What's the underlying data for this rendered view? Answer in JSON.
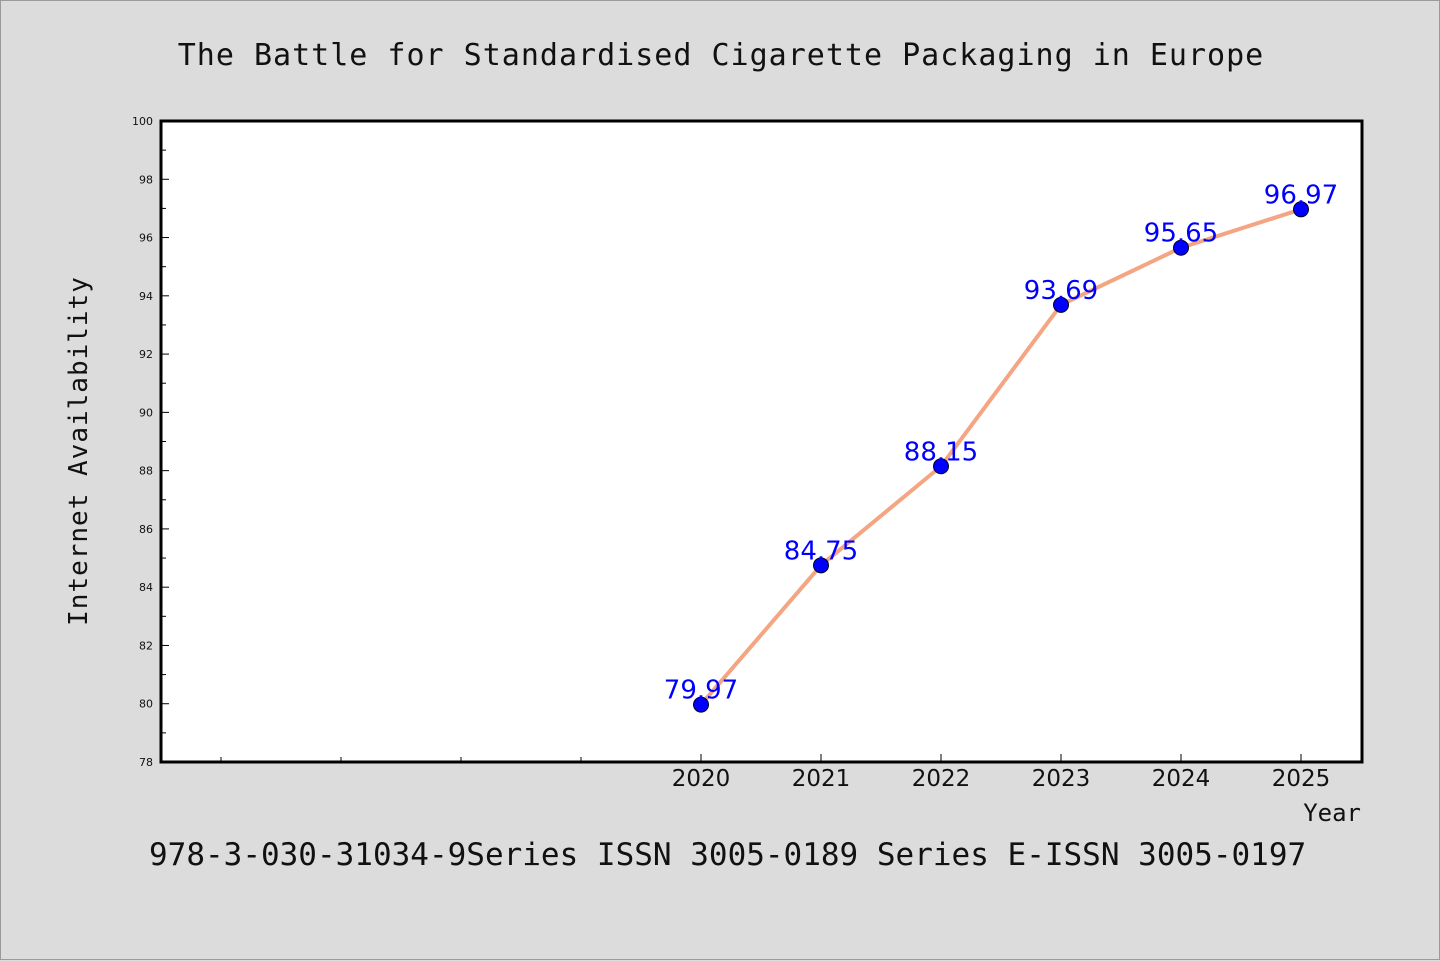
{
  "colors": {
    "background": "#dcdcdc",
    "plot_background": "#ffffff",
    "line": "#f4a582",
    "marker": "#0000ff",
    "data_label": "#0000ff"
  },
  "footer": "978-3-030-31034-9Series ISSN 3005-0189 Series E-ISSN 3005-0197",
  "chart_data": {
    "type": "line",
    "title": "The Battle for Standardised Cigarette Packaging in Europe",
    "xlabel": "Year",
    "ylabel": "Internet Availability",
    "x": [
      "2020",
      "2021",
      "2022",
      "2023",
      "2024",
      "2025"
    ],
    "series": [
      {
        "values": [
          79.97,
          84.75,
          88.15,
          93.69,
          95.65,
          96.97
        ]
      }
    ],
    "data_labels": [
      "79.97",
      "84.75",
      "88.15",
      "93.69",
      "95.65",
      "96.97"
    ],
    "x_tick_labels": [
      "2020",
      "2021",
      "2022",
      "2023",
      "2024",
      "2025"
    ],
    "y_tick_labels": [
      "78",
      "80",
      "82",
      "84",
      "86",
      "88",
      "90",
      "92",
      "94",
      "96",
      "98",
      "100"
    ],
    "ylim": [
      78,
      100
    ],
    "grid": false,
    "legend": "none",
    "marker": "circle"
  }
}
